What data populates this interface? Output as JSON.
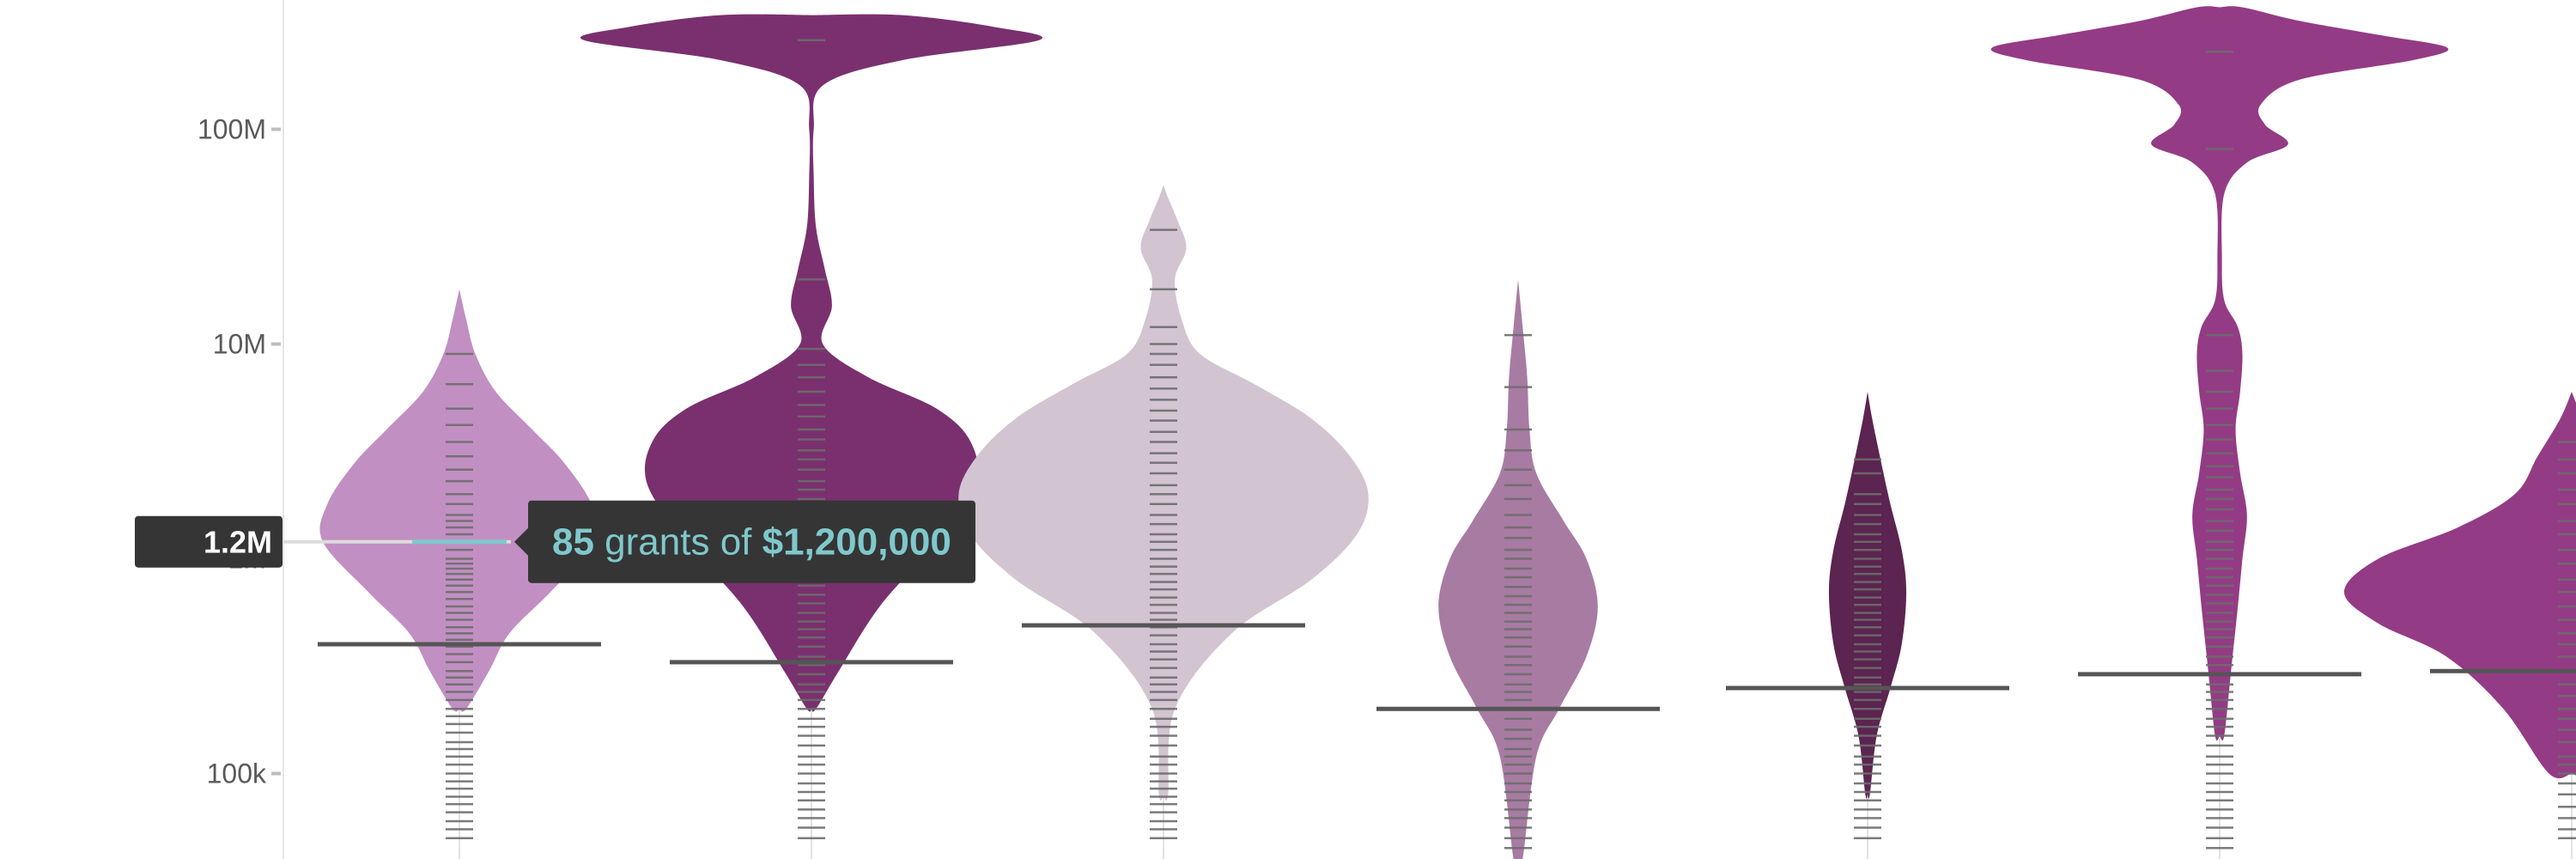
{
  "chart_data": {
    "type": "violin",
    "y_scale": "log",
    "ylim": [
      40000,
      400000000
    ],
    "y_ticks": [
      {
        "value": 100000,
        "label": "100k"
      },
      {
        "value": 1000000,
        "label": "1M"
      },
      {
        "value": 10000000,
        "label": "10M"
      },
      {
        "value": 100000000,
        "label": "100M"
      }
    ],
    "groups": [
      {
        "color": "#c18fc2",
        "median": 400000,
        "violin": [
          [
            200000,
            0.03
          ],
          [
            300000,
            0.13
          ],
          [
            450000,
            0.22
          ],
          [
            700000,
            0.4
          ],
          [
            1200000,
            0.6
          ],
          [
            1800000,
            0.58
          ],
          [
            2800000,
            0.46
          ],
          [
            4000000,
            0.32
          ],
          [
            6000000,
            0.16
          ],
          [
            9000000,
            0.07
          ],
          [
            13000000,
            0.03
          ],
          [
            18000000,
            0
          ]
        ],
        "ticks": [
          9000000,
          6500000,
          5000000,
          4200000,
          3500000,
          3000000,
          2600000,
          2300000,
          2000000,
          1800000,
          1600000,
          1500000,
          1400000,
          1300000,
          1200000,
          1100000,
          1000000,
          950000,
          900000,
          850000,
          800000,
          750000,
          700000,
          650000,
          600000,
          560000,
          520000,
          480000,
          450000,
          420000,
          390000,
          360000,
          330000,
          300000,
          280000,
          260000,
          240000,
          220000,
          200000,
          185000,
          170000,
          155000,
          140000,
          130000,
          120000,
          110000,
          100000,
          92000,
          85000,
          78000,
          72000,
          66000,
          60000,
          55000,
          50000
        ]
      },
      {
        "color": "#7a306e",
        "median": 330000,
        "violin": [
          [
            200000,
            0.02
          ],
          [
            300000,
            0.12
          ],
          [
            600000,
            0.3
          ],
          [
            1200000,
            0.55
          ],
          [
            2200000,
            0.72
          ],
          [
            3500000,
            0.7
          ],
          [
            5000000,
            0.55
          ],
          [
            7000000,
            0.25
          ],
          [
            10000000,
            0.05
          ],
          [
            15000000,
            0.09
          ],
          [
            22000000,
            0.06
          ],
          [
            35000000,
            0.02
          ],
          [
            60000000,
            0.01
          ],
          [
            100000000,
            0.01
          ],
          [
            160000000,
            0.05
          ],
          [
            210000000,
            0.4
          ],
          [
            260000000,
            1.0
          ],
          [
            300000000,
            0.8
          ],
          [
            340000000,
            0.4
          ]
        ],
        "ticks": [
          260000000,
          20000000,
          9500000,
          8000000,
          7000000,
          6000000,
          5200000,
          4600000,
          4000000,
          3600000,
          3200000,
          2900000,
          2600000,
          2300000,
          2100000,
          1900000,
          1700000,
          1500000,
          1350000,
          1200000,
          1100000,
          1000000,
          900000,
          820000,
          750000,
          680000,
          620000,
          560000,
          510000,
          470000,
          430000,
          390000,
          350000,
          320000,
          290000,
          260000,
          240000,
          220000,
          200000,
          180000,
          165000,
          150000,
          135000,
          120000,
          110000,
          100000,
          90000,
          82000,
          75000,
          68000,
          62000,
          56000,
          50000
        ]
      },
      {
        "color": "#d3c4d1",
        "median": 490000,
        "violin": [
          [
            80000,
            0.02
          ],
          [
            200000,
            0.05
          ],
          [
            450000,
            0.3
          ],
          [
            800000,
            0.65
          ],
          [
            1300000,
            0.85
          ],
          [
            2000000,
            0.9
          ],
          [
            3000000,
            0.82
          ],
          [
            4500000,
            0.65
          ],
          [
            6500000,
            0.4
          ],
          [
            9000000,
            0.16
          ],
          [
            13000000,
            0.08
          ],
          [
            20000000,
            0.05
          ],
          [
            28000000,
            0.1
          ],
          [
            38000000,
            0.06
          ],
          [
            48000000,
            0.02
          ],
          [
            55000000,
            0
          ]
        ],
        "ticks": [
          34000000,
          18000000,
          12000000,
          10000000,
          9000000,
          8000000,
          7000000,
          6200000,
          5500000,
          4900000,
          4400000,
          3900000,
          3500000,
          3100000,
          2800000,
          2500000,
          2200000,
          2000000,
          1800000,
          1600000,
          1450000,
          1300000,
          1200000,
          1100000,
          1000000,
          920000,
          850000,
          780000,
          720000,
          660000,
          610000,
          560000,
          520000,
          480000,
          440000,
          400000,
          370000,
          340000,
          310000,
          280000,
          260000,
          240000,
          220000,
          200000,
          180000,
          165000,
          150000,
          135000,
          120000,
          110000,
          100000,
          92000,
          85000,
          78000,
          72000,
          66000,
          60000,
          55000,
          50000
        ]
      },
      {
        "color": "#a87ba3",
        "median": 200000,
        "violin": [
          [
            40000,
            0.02
          ],
          [
            120000,
            0.08
          ],
          [
            200000,
            0.18
          ],
          [
            350000,
            0.3
          ],
          [
            600000,
            0.35
          ],
          [
            1000000,
            0.3
          ],
          [
            1500000,
            0.2
          ],
          [
            2500000,
            0.08
          ],
          [
            4000000,
            0.05
          ],
          [
            7000000,
            0.04
          ],
          [
            12000000,
            0.02
          ],
          [
            20000000,
            0
          ]
        ],
        "ticks": [
          11000000,
          6300000,
          4000000,
          3200000,
          2600000,
          2200000,
          1900000,
          1600000,
          1400000,
          1250000,
          1100000,
          1000000,
          900000,
          820000,
          740000,
          670000,
          610000,
          560000,
          510000,
          470000,
          430000,
          390000,
          350000,
          320000,
          290000,
          260000,
          240000,
          220000,
          200000,
          180000,
          160000,
          145000,
          130000,
          120000,
          110000,
          100000,
          90000,
          82000,
          75000,
          68000,
          62000,
          56000,
          50000,
          45000
        ]
      },
      {
        "color": "#5c2450",
        "median": 250000,
        "violin": [
          [
            80000,
            0.01
          ],
          [
            150000,
            0.04
          ],
          [
            250000,
            0.1
          ],
          [
            400000,
            0.15
          ],
          [
            700000,
            0.17
          ],
          [
            1100000,
            0.15
          ],
          [
            1800000,
            0.1
          ],
          [
            2800000,
            0.06
          ],
          [
            4500000,
            0.02
          ],
          [
            6000000,
            0
          ]
        ],
        "ticks": [
          2900000,
          2500000,
          2000000,
          1800000,
          1600000,
          1450000,
          1300000,
          1200000,
          1100000,
          1000000,
          920000,
          850000,
          780000,
          720000,
          660000,
          610000,
          560000,
          520000,
          480000,
          440000,
          400000,
          370000,
          340000,
          310000,
          280000,
          260000,
          240000,
          220000,
          200000,
          180000,
          165000,
          150000,
          135000,
          120000,
          110000,
          100000,
          90000,
          82000,
          75000,
          68000,
          62000,
          56000,
          50000
        ]
      },
      {
        "color": "#943b85",
        "median": 290000,
        "violin": [
          [
            150000,
            0.02
          ],
          [
            300000,
            0.05
          ],
          [
            600000,
            0.08
          ],
          [
            1000000,
            0.1
          ],
          [
            1600000,
            0.12
          ],
          [
            2500000,
            0.09
          ],
          [
            4000000,
            0.07
          ],
          [
            6000000,
            0.09
          ],
          [
            9000000,
            0.1
          ],
          [
            12000000,
            0.08
          ],
          [
            16000000,
            0.02
          ],
          [
            25000000,
            0.01
          ],
          [
            50000000,
            0.02
          ],
          [
            70000000,
            0.12
          ],
          [
            85000000,
            0.3
          ],
          [
            105000000,
            0.2
          ],
          [
            130000000,
            0.18
          ],
          [
            170000000,
            0.35
          ],
          [
            210000000,
            0.85
          ],
          [
            240000000,
            1.0
          ],
          [
            275000000,
            0.7
          ],
          [
            320000000,
            0.35
          ],
          [
            370000000,
            0.1
          ]
        ],
        "ticks": [
          230000000,
          81000000,
          11000000,
          7500000,
          6000000,
          5000000,
          4200000,
          3600000,
          3100000,
          2700000,
          2400000,
          2100000,
          1900000,
          1700000,
          1500000,
          1350000,
          1200000,
          1100000,
          1000000,
          900000,
          820000,
          750000,
          680000,
          620000,
          560000,
          510000,
          470000,
          430000,
          390000,
          350000,
          320000,
          290000,
          260000,
          240000,
          220000,
          200000,
          180000,
          165000,
          150000,
          135000,
          120000,
          110000,
          100000,
          90000,
          82000,
          75000,
          68000,
          62000,
          56000,
          50000,
          45000
        ]
      },
      {
        "color": "#943b85",
        "median": 300000,
        "violin": [
          [
            100000,
            0.1
          ],
          [
            200000,
            0.3
          ],
          [
            350000,
            0.55
          ],
          [
            500000,
            0.85
          ],
          [
            700000,
            1.0
          ],
          [
            1000000,
            0.85
          ],
          [
            1400000,
            0.5
          ],
          [
            2000000,
            0.25
          ],
          [
            3000000,
            0.15
          ],
          [
            4500000,
            0.05
          ],
          [
            6000000,
            0
          ]
        ],
        "ticks": [
          3500000,
          2900000,
          2500000,
          2100000,
          1800000,
          1500000,
          1300000,
          1100000,
          950000,
          800000,
          700000,
          600000,
          520000,
          450000,
          400000,
          350000,
          300000,
          260000,
          230000,
          200000,
          180000,
          160000,
          140000,
          120000,
          110000,
          100000,
          90000,
          80000,
          70000,
          62000,
          55000,
          50000
        ]
      }
    ],
    "tooltip": {
      "count": "85",
      "middle": " grants of ",
      "amount": "$1,200,000",
      "value": 1200000,
      "group": 0
    },
    "badge": {
      "label": "1.2M",
      "value": 1200000
    }
  }
}
